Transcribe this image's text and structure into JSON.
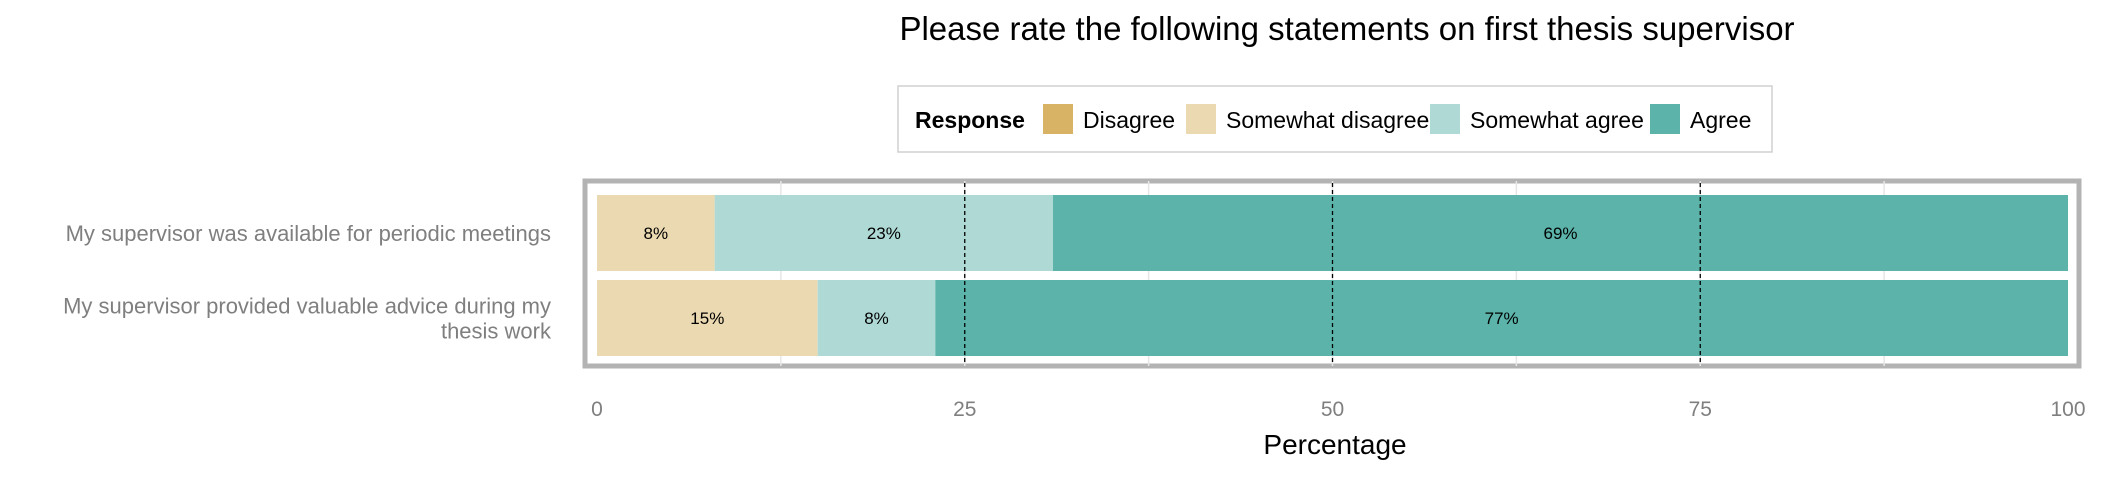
{
  "chart_data": {
    "type": "bar",
    "orientation": "horizontal",
    "stacked": true,
    "title": "Please rate the following statements on first thesis supervisor",
    "xlabel": "Percentage",
    "ylabel": "",
    "xlim": [
      0,
      100
    ],
    "x_ticks": [
      0,
      25,
      50,
      75,
      100
    ],
    "reference_lines": [
      25,
      50,
      75
    ],
    "grid": true,
    "legend": {
      "title": "Response",
      "placement": "top",
      "entries": [
        "Disagree",
        "Somewhat disagree",
        "Somewhat agree",
        "Agree"
      ]
    },
    "categories": [
      "My supervisor was available for periodic meetings",
      "My supervisor provided valuable advice during my thesis work"
    ],
    "category_label_lines": [
      [
        "My supervisor was available for periodic meetings"
      ],
      [
        "My supervisor provided valuable advice during my",
        "thesis work"
      ]
    ],
    "series": [
      {
        "name": "Disagree",
        "color": "#d9b365",
        "values": [
          0,
          0
        ]
      },
      {
        "name": "Somewhat disagree",
        "color": "#ebd9b2",
        "values": [
          8,
          15
        ]
      },
      {
        "name": "Somewhat agree",
        "color": "#aed9d5",
        "values": [
          23,
          8
        ]
      },
      {
        "name": "Agree",
        "color": "#5bb3a9",
        "values": [
          69,
          77
        ]
      }
    ],
    "value_labels": [
      [
        "",
        "8%",
        "23%",
        "69%"
      ],
      [
        "",
        "15%",
        "8%",
        "77%"
      ]
    ]
  }
}
